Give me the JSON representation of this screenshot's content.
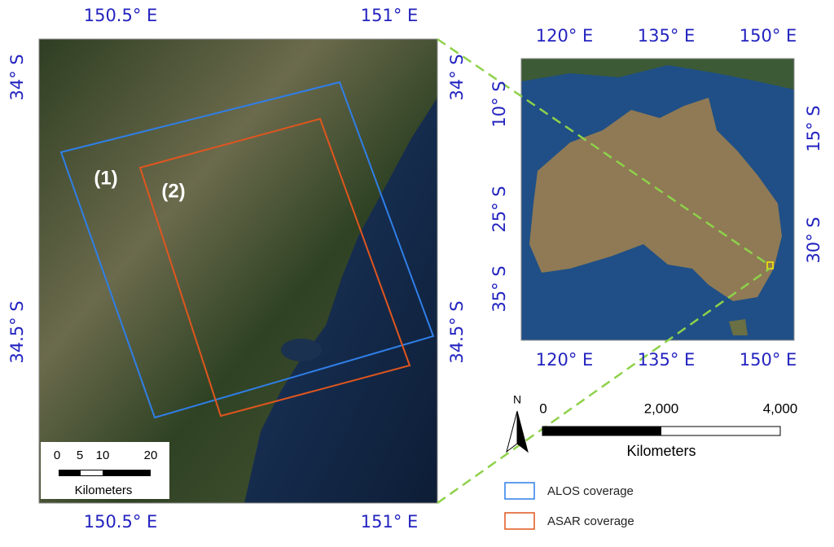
{
  "left_map": {
    "top_labels": [
      "150.5° E",
      "151° E"
    ],
    "bottom_labels": [
      "150.5° E",
      "151° E"
    ],
    "left_labels": [
      "34° S",
      "34.5° S"
    ],
    "right_labels": [
      "34° S",
      "34.5° S"
    ],
    "region_labels": [
      "(1)",
      "(2)"
    ],
    "scale_bar": {
      "ticks": [
        "0",
        "5",
        "10",
        "20"
      ],
      "unit": "Kilometers"
    }
  },
  "inset_map": {
    "top_labels": [
      "120° E",
      "135° E",
      "150° E"
    ],
    "bottom_labels": [
      "120° E",
      "135° E",
      "150° E"
    ],
    "left_labels": [
      "10° S",
      "25° S",
      "35° S"
    ],
    "right_labels": [
      "15° S",
      "30° S"
    ],
    "north": "N",
    "scale_bar": {
      "ticks": [
        "0",
        "2,000",
        "4,000"
      ],
      "unit": "Kilometers"
    }
  },
  "legend": [
    {
      "label": "ALOS coverage",
      "color": "#2f7fe8"
    },
    {
      "label": "ASAR coverage",
      "color": "#e0561e"
    }
  ]
}
